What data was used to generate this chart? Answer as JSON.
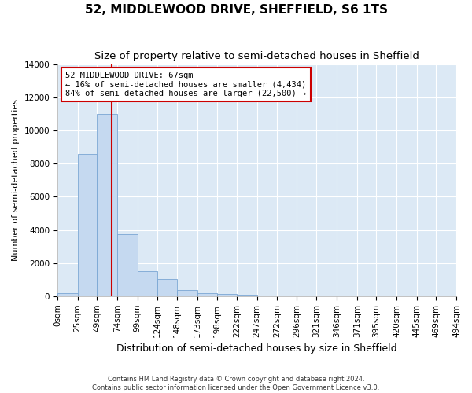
{
  "title": "52, MIDDLEWOOD DRIVE, SHEFFIELD, S6 1TS",
  "subtitle": "Size of property relative to semi-detached houses in Sheffield",
  "xlabel": "Distribution of semi-detached houses by size in Sheffield",
  "ylabel": "Number of semi-detached properties",
  "footer_line1": "Contains HM Land Registry data © Crown copyright and database right 2024.",
  "footer_line2": "Contains public sector information licensed under the Open Government Licence v3.0.",
  "property_size": 67,
  "property_label": "52 MIDDLEWOOD DRIVE: 67sqm",
  "smaller_pct": 16,
  "smaller_count": 4434,
  "larger_pct": 84,
  "larger_count": 22500,
  "bin_edges": [
    0,
    25,
    49,
    74,
    99,
    124,
    148,
    173,
    198,
    222,
    247,
    272,
    296,
    321,
    346,
    371,
    395,
    420,
    445,
    469,
    494
  ],
  "bin_labels": [
    "0sqm",
    "25sqm",
    "49sqm",
    "74sqm",
    "99sqm",
    "124sqm",
    "148sqm",
    "173sqm",
    "198sqm",
    "222sqm",
    "247sqm",
    "272sqm",
    "296sqm",
    "321sqm",
    "346sqm",
    "371sqm",
    "395sqm",
    "420sqm",
    "445sqm",
    "469sqm",
    "494sqm"
  ],
  "bar_heights": [
    200,
    8600,
    11000,
    3750,
    1500,
    1050,
    350,
    180,
    120,
    90,
    0,
    0,
    0,
    0,
    0,
    0,
    0,
    0,
    0,
    0
  ],
  "bar_color": "#c5d9f0",
  "bar_edge_color": "#7aa6d4",
  "vline_color": "#cc0000",
  "vline_x": 67,
  "annotation_box_color": "#cc0000",
  "ylim": [
    0,
    14000
  ],
  "yticks": [
    0,
    2000,
    4000,
    6000,
    8000,
    10000,
    12000,
    14000
  ],
  "background_color": "#dce9f5",
  "grid_color": "#ffffff",
  "title_fontsize": 11,
  "subtitle_fontsize": 9.5,
  "xlabel_fontsize": 9,
  "ylabel_fontsize": 8,
  "tick_fontsize": 7.5,
  "annotation_fontsize": 7.5,
  "footer_fontsize": 6
}
